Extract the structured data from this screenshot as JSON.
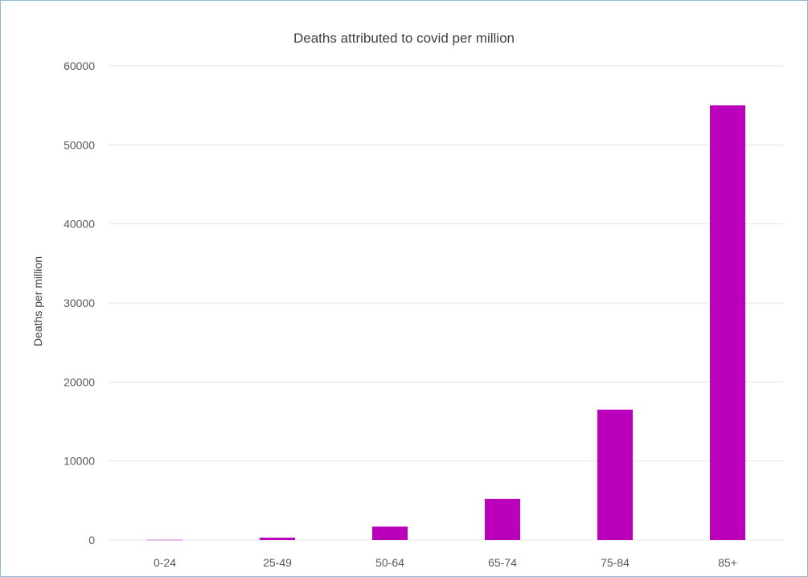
{
  "chart_data": {
    "type": "bar",
    "title": "Deaths attributed to covid per million",
    "xlabel": "",
    "ylabel": "Deaths per million",
    "categories": [
      "0-24",
      "25-49",
      "50-64",
      "65-74",
      "75-84",
      "85+"
    ],
    "values": [
      30,
      300,
      1700,
      5200,
      16500,
      55000
    ],
    "ylim": [
      0,
      60000
    ],
    "yticks": [
      "0",
      "10000",
      "20000",
      "30000",
      "40000",
      "50000",
      "60000"
    ],
    "grid": true,
    "legend": "none",
    "bar_color": "#bb00bb",
    "grid_color": "#e6e6e6",
    "text_color": "#595959"
  }
}
